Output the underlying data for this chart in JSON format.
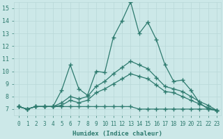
{
  "title": "",
  "xlabel": "Humidex (Indice chaleur)",
  "ylabel": "",
  "background_color": "#cce8e8",
  "grid_color": "#b8d8d8",
  "line_color": "#2d7a6e",
  "xlim": [
    -0.5,
    23.5
  ],
  "ylim": [
    6.5,
    15.5
  ],
  "yticks": [
    7,
    8,
    9,
    10,
    11,
    12,
    13,
    14,
    15
  ],
  "xticks": [
    0,
    1,
    2,
    3,
    4,
    5,
    6,
    7,
    8,
    9,
    10,
    11,
    12,
    13,
    14,
    15,
    16,
    17,
    18,
    19,
    20,
    21,
    22,
    23
  ],
  "series": [
    {
      "x": [
        0,
        1,
        2,
        3,
        4,
        5,
        6,
        7,
        8,
        9,
        10,
        11,
        12,
        13,
        14,
        15,
        16,
        17,
        18,
        19,
        20,
        21,
        22,
        23
      ],
      "y": [
        7.2,
        7.0,
        7.2,
        7.2,
        7.2,
        8.5,
        10.5,
        8.6,
        8.1,
        10.0,
        9.9,
        12.7,
        14.0,
        15.5,
        13.0,
        13.9,
        12.5,
        10.5,
        9.2,
        9.3,
        8.5,
        7.5,
        7.0,
        6.9
      ],
      "marker": "+",
      "markersize": 4,
      "linewidth": 0.9
    },
    {
      "x": [
        0,
        1,
        2,
        3,
        4,
        5,
        6,
        7,
        8,
        9,
        10,
        11,
        12,
        13,
        14,
        15,
        16,
        17,
        18,
        19,
        20,
        21,
        22,
        23
      ],
      "y": [
        7.2,
        7.0,
        7.2,
        7.2,
        7.2,
        7.5,
        8.0,
        7.8,
        8.0,
        8.8,
        9.2,
        9.8,
        10.3,
        10.8,
        10.5,
        10.2,
        9.5,
        8.8,
        8.6,
        8.4,
        8.0,
        7.6,
        7.3,
        6.9
      ],
      "marker": "+",
      "markersize": 4,
      "linewidth": 0.9
    },
    {
      "x": [
        0,
        1,
        2,
        3,
        4,
        5,
        6,
        7,
        8,
        9,
        10,
        11,
        12,
        13,
        14,
        15,
        16,
        17,
        18,
        19,
        20,
        21,
        22,
        23
      ],
      "y": [
        7.2,
        7.0,
        7.2,
        7.2,
        7.2,
        7.3,
        7.7,
        7.5,
        7.7,
        8.3,
        8.6,
        9.0,
        9.4,
        9.8,
        9.6,
        9.4,
        8.9,
        8.4,
        8.3,
        8.0,
        7.7,
        7.4,
        7.1,
        6.9
      ],
      "marker": "+",
      "markersize": 4,
      "linewidth": 0.9
    },
    {
      "x": [
        0,
        1,
        2,
        3,
        4,
        5,
        6,
        7,
        8,
        9,
        10,
        11,
        12,
        13,
        14,
        15,
        16,
        17,
        18,
        19,
        20,
        21,
        22,
        23
      ],
      "y": [
        7.2,
        7.0,
        7.2,
        7.2,
        7.2,
        7.2,
        7.2,
        7.2,
        7.2,
        7.2,
        7.2,
        7.2,
        7.2,
        7.2,
        7.0,
        7.0,
        7.0,
        7.0,
        7.0,
        7.0,
        7.0,
        7.0,
        7.0,
        6.9
      ],
      "marker": "+",
      "markersize": 4,
      "linewidth": 0.9
    }
  ]
}
